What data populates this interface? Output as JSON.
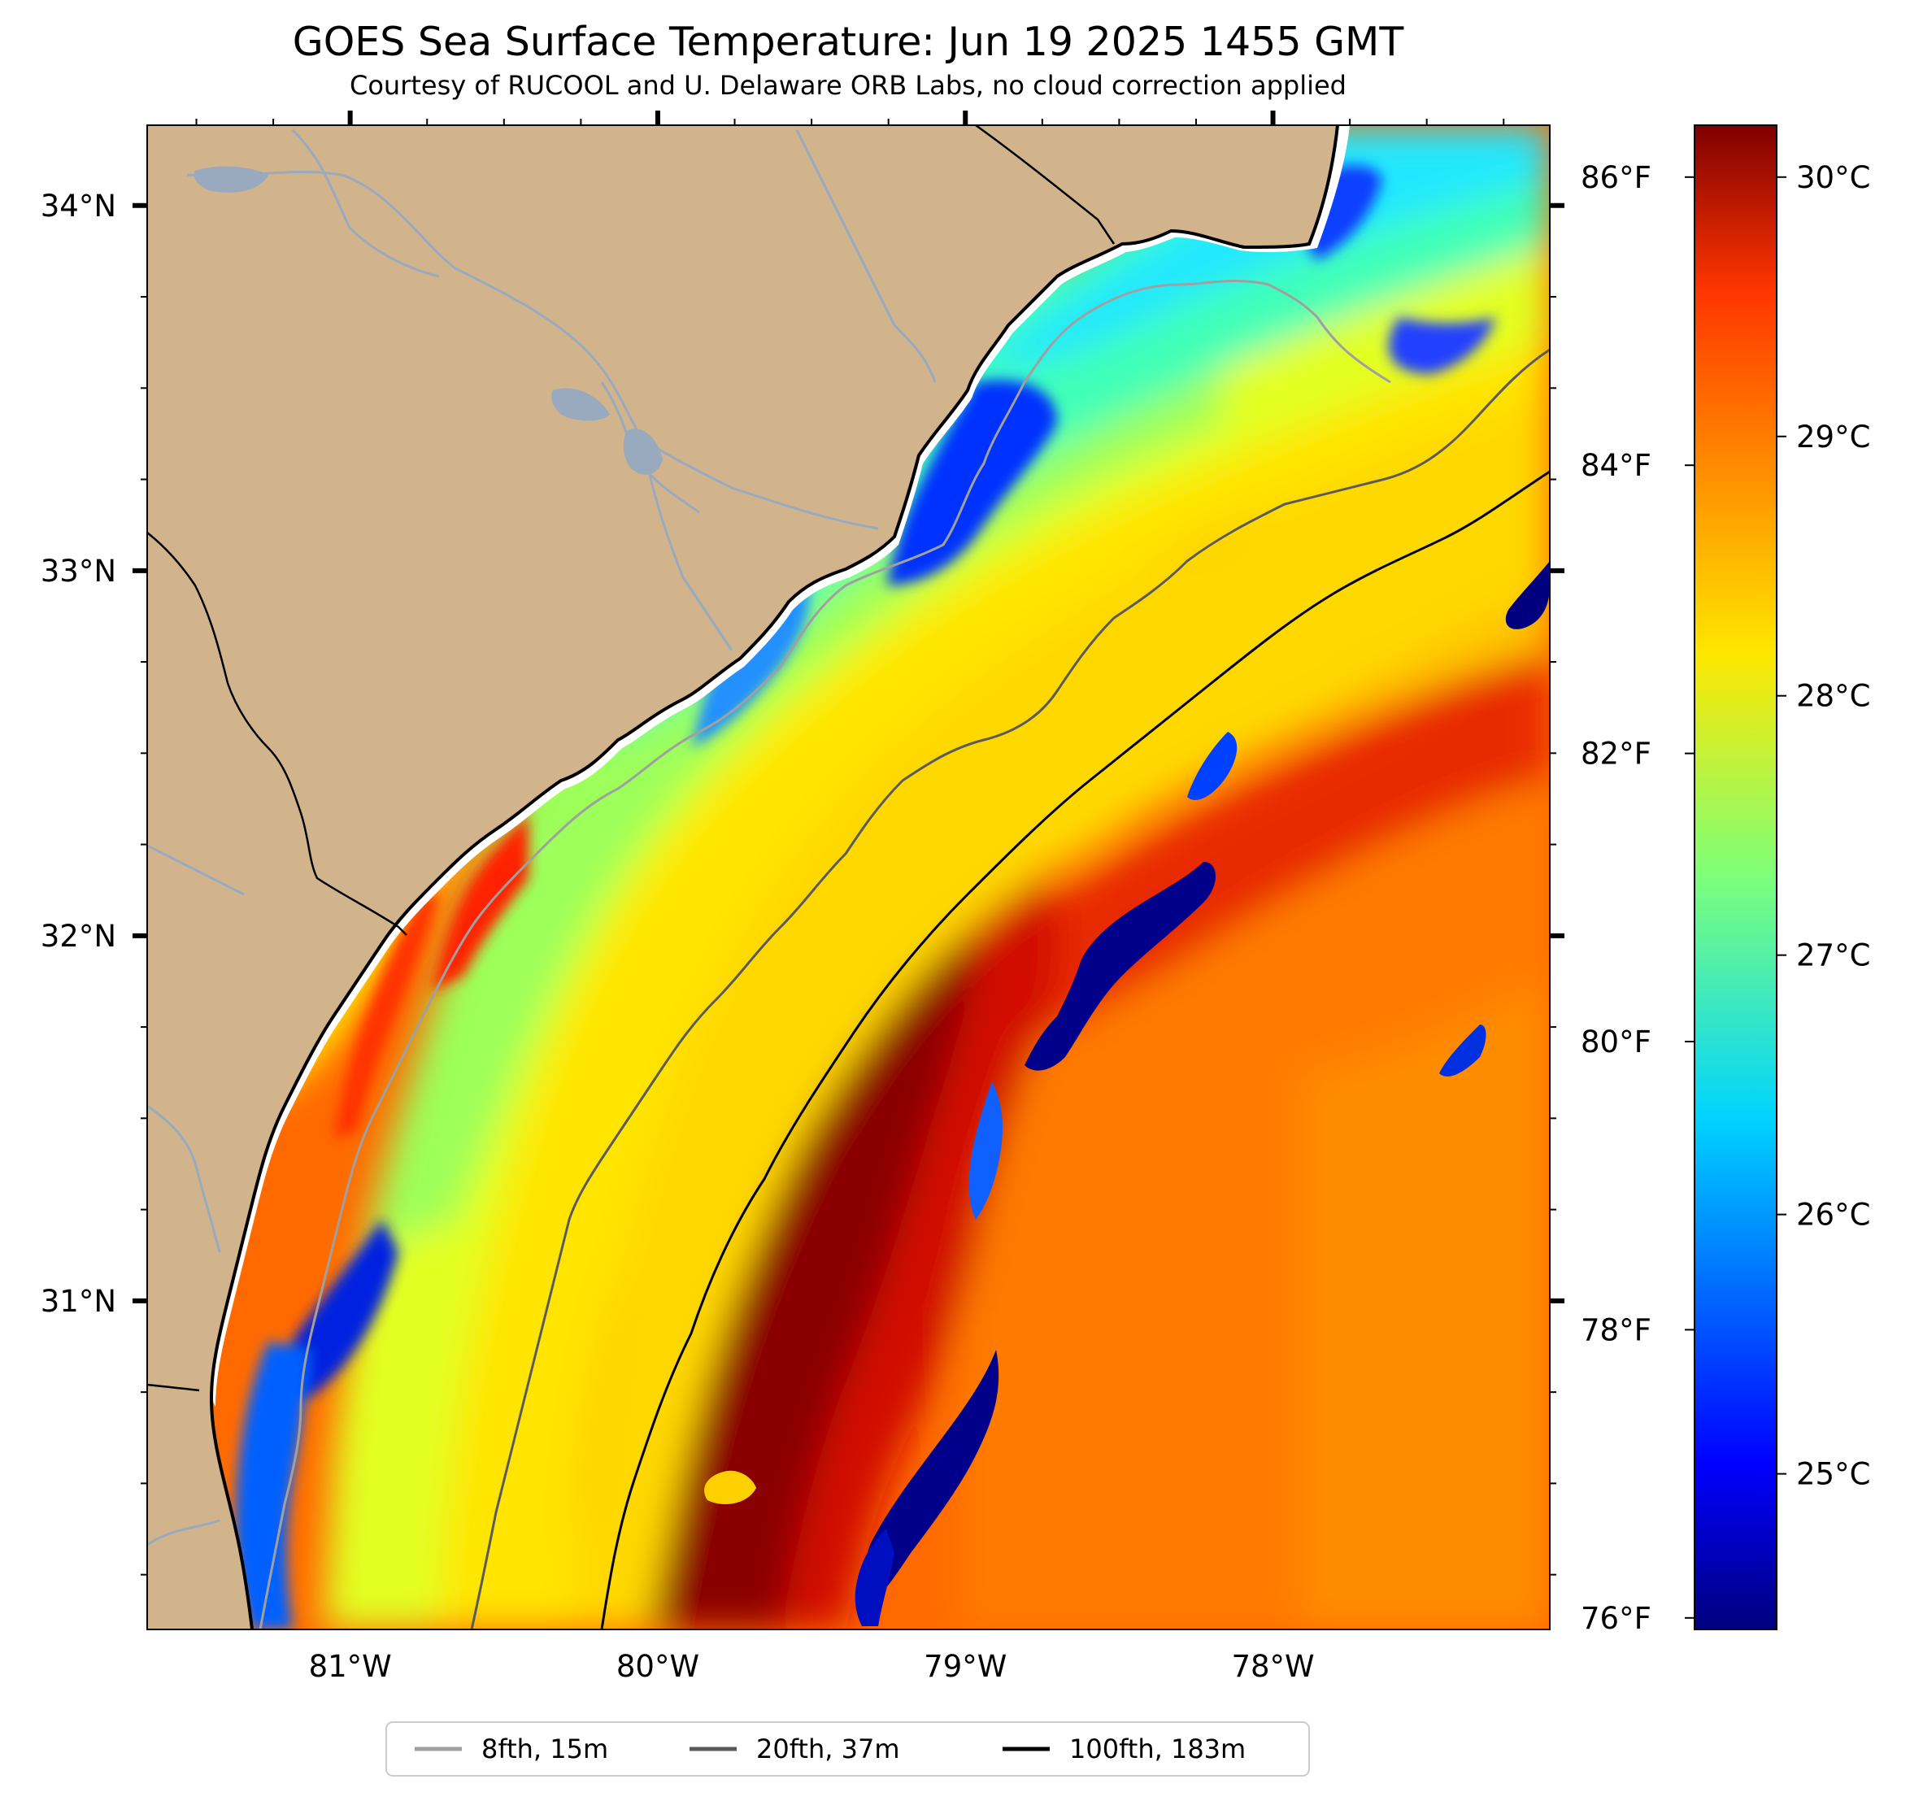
{
  "title": "GOES Sea Surface Temperature: Jun 19 2025 1455 GMT",
  "subtitle": "Courtesy of RUCOOL and U. Delaware ORB Labs, no cloud correction applied",
  "map": {
    "lon_range": [
      -81.66,
      -77.1
    ],
    "lat_range": [
      30.1,
      34.22
    ],
    "lon_ticks": [
      {
        "value": -81,
        "label": "81°W"
      },
      {
        "value": -80,
        "label": "80°W"
      },
      {
        "value": -79,
        "label": "79°W"
      },
      {
        "value": -78,
        "label": "78°W"
      }
    ],
    "lat_ticks": [
      {
        "value": 34,
        "label": "34°N"
      },
      {
        "value": 33,
        "label": "33°N"
      },
      {
        "value": 32,
        "label": "32°N"
      },
      {
        "value": 31,
        "label": "31°N"
      }
    ],
    "colors": {
      "land": "#d1b48c",
      "coast": "#000000",
      "rivers": "#99aabf",
      "isobath_8": "#a0a0a0",
      "isobath_20": "#5a5a5a",
      "isobath_100": "#000000"
    }
  },
  "colorbar": {
    "celsius_range": [
      24.4,
      30.2
    ],
    "celsius_ticks": [
      {
        "value": 25,
        "label": "25°C"
      },
      {
        "value": 26,
        "label": "26°C"
      },
      {
        "value": 27,
        "label": "27°C"
      },
      {
        "value": 28,
        "label": "28°C"
      },
      {
        "value": 29,
        "label": "29°C"
      },
      {
        "value": 30,
        "label": "30°C"
      }
    ],
    "fahrenheit_ticks": [
      {
        "value": 76,
        "label": "76°F"
      },
      {
        "value": 78,
        "label": "78°F"
      },
      {
        "value": 80,
        "label": "80°F"
      },
      {
        "value": 82,
        "label": "82°F"
      },
      {
        "value": 84,
        "label": "84°F"
      },
      {
        "value": 86,
        "label": "86°F"
      }
    ],
    "colormap": "jet"
  },
  "legend": [
    {
      "label": "8fth, 15m",
      "color": "#a0a0a0"
    },
    {
      "label": "20fth, 37m",
      "color": "#5a5a5a"
    },
    {
      "label": "100fth, 183m",
      "color": "#000000"
    }
  ]
}
